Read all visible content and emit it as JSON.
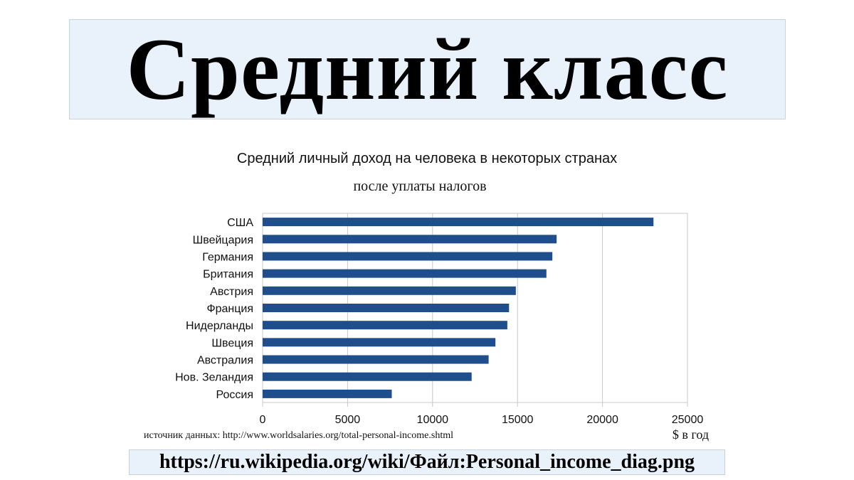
{
  "header": {
    "title": "Средний класс"
  },
  "footer": {
    "url": "https://ru.wikipedia.org/wiki/Файл:Personal_income_diag.png"
  },
  "chart_data": {
    "type": "bar",
    "orientation": "horizontal",
    "title": "Средний личный доход на человека в некоторых странах",
    "subtitle": "после уплаты налогов",
    "categories": [
      "США",
      "Швейцария",
      "Германия",
      "Британия",
      "Австрия",
      "Франция",
      "Нидерланды",
      "Швеция",
      "Австралия",
      "Нов. Зеландия",
      "Россия"
    ],
    "values": [
      23000,
      17300,
      17050,
      16700,
      14900,
      14500,
      14400,
      13700,
      13300,
      12300,
      7600
    ],
    "xlim": [
      0,
      25000
    ],
    "xticks": [
      0,
      5000,
      10000,
      15000,
      20000,
      25000
    ],
    "xlabel": "$ в год",
    "source_note": "источник данных: http://www.worldsalaries.org/total-personal-income.shtml",
    "grid": true,
    "bar_color": "#1f4e8c"
  }
}
